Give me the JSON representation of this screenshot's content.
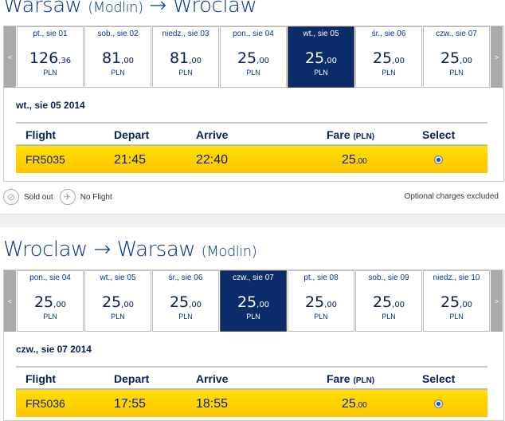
{
  "currency": "PLN",
  "outbound": {
    "title_from": "Warsaw",
    "title_from_sub": "(Modlin)",
    "arrow": "→",
    "title_to": "Wroclaw",
    "prev_label": "<",
    "next_label": ">",
    "days": [
      {
        "date": "pt., sie 01",
        "int": "126",
        "dec": ",36",
        "selected": false
      },
      {
        "date": "sob., sie 02",
        "int": "81",
        "dec": ",00",
        "selected": false
      },
      {
        "date": "niedz., sie 03",
        "int": "81",
        "dec": ",00",
        "selected": false
      },
      {
        "date": "pon., sie 04",
        "int": "25",
        "dec": ",00",
        "selected": false
      },
      {
        "date": "wt., sie 05",
        "int": "25",
        "dec": ",00",
        "selected": true
      },
      {
        "date": "śr., sie 06",
        "int": "25",
        "dec": ",00",
        "selected": false
      },
      {
        "date": "czw., sie 07",
        "int": "25",
        "dec": ",00",
        "selected": false
      }
    ],
    "selected_date": "wt., sie 05 2014",
    "flight": {
      "number": "FR5035",
      "depart": "21:45",
      "arrive": "22:40",
      "fare_int": "25",
      "fare_dec": ",00",
      "selected": true
    }
  },
  "inbound": {
    "title_from": "Wroclaw",
    "arrow": "→",
    "title_to": "Warsaw",
    "title_to_sub": "(Modlin)",
    "prev_label": "<",
    "next_label": ">",
    "days": [
      {
        "date": "pon., sie 04",
        "int": "25",
        "dec": ",00",
        "selected": false
      },
      {
        "date": "wt., sie 05",
        "int": "25",
        "dec": ",00",
        "selected": false
      },
      {
        "date": "śr., sie 06",
        "int": "25",
        "dec": ",00",
        "selected": false
      },
      {
        "date": "czw., sie 07",
        "int": "25",
        "dec": ",00",
        "selected": true
      },
      {
        "date": "pt., sie 08",
        "int": "25",
        "dec": ",00",
        "selected": false
      },
      {
        "date": "sob., sie 09",
        "int": "25",
        "dec": ",00",
        "selected": false
      },
      {
        "date": "niedz., sie 10",
        "int": "25",
        "dec": ",00",
        "selected": false
      }
    ],
    "selected_date": "czw., sie 07 2014",
    "flight": {
      "number": "FR5036",
      "depart": "17:55",
      "arrive": "18:55",
      "fare_int": "25",
      "fare_dec": ",00",
      "selected": true
    }
  },
  "table_headers": {
    "flight": "Flight",
    "depart": "Depart",
    "arrive": "Arrive",
    "fare": "Fare",
    "fare_unit": "(PLN)",
    "select": "Select"
  },
  "legend": {
    "sold_out": "Sold out",
    "sold_out_icon": "seat-crossed-icon",
    "no_flight": "No Flight",
    "no_flight_icon": "plane-crossed-icon",
    "note": "Optional charges excluded"
  },
  "colors": {
    "brand": "#073590",
    "selected_day": "#0b2c6b",
    "flight_row": "#ffd200"
  }
}
